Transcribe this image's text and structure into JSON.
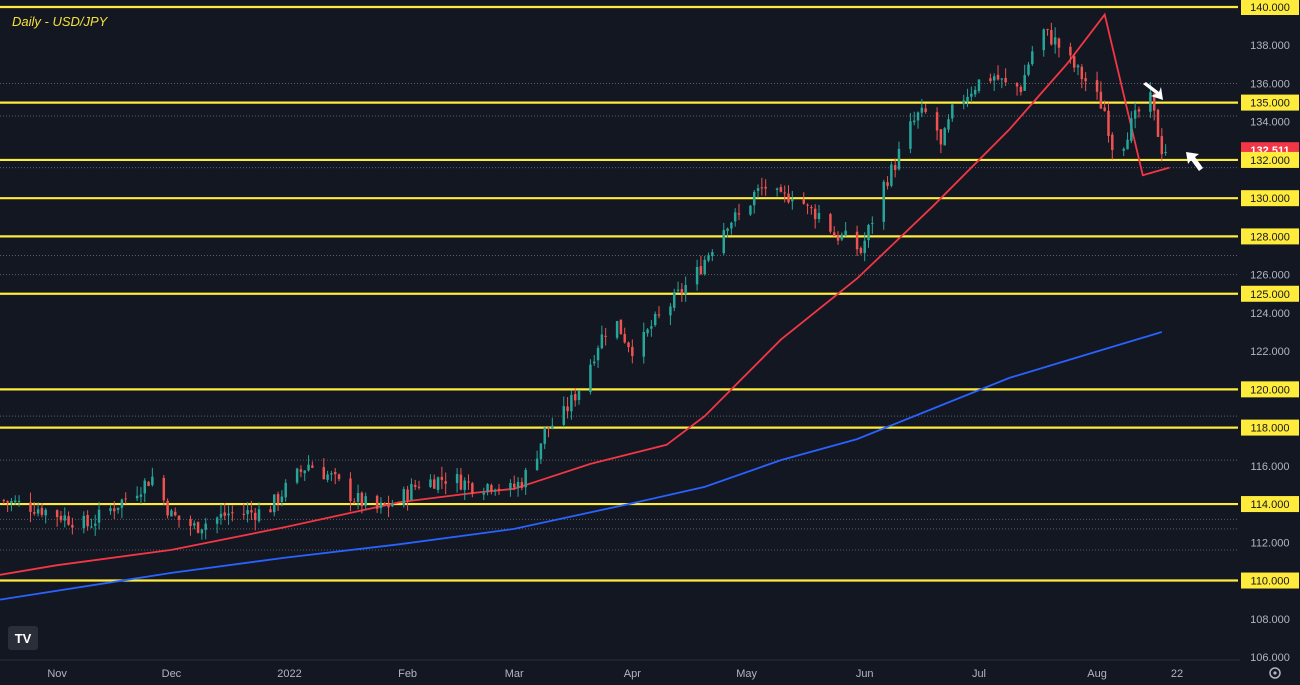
{
  "chart_data": {
    "type": "candlestick",
    "title": "Daily - USD/JPY",
    "ylim": [
      106,
      140
    ],
    "y_ticks": [
      "140.000",
      "138.000",
      "136.000",
      "135.000",
      "134.000",
      "132.511",
      "132.000",
      "130.000",
      "128.000",
      "126.000",
      "125.000",
      "124.000",
      "122.000",
      "120.000",
      "118.000",
      "116.000",
      "114.000",
      "112.000",
      "110.000",
      "108.000",
      "106.000"
    ],
    "x_ticks": [
      {
        "label": "Nov",
        "day": 0
      },
      {
        "label": "Dec",
        "day": 30
      },
      {
        "label": "2022",
        "day": 61
      },
      {
        "label": "Feb",
        "day": 92
      },
      {
        "label": "Mar",
        "day": 120
      },
      {
        "label": "Apr",
        "day": 151
      },
      {
        "label": "May",
        "day": 181
      },
      {
        "label": "Jun",
        "day": 212
      },
      {
        "label": "Jul",
        "day": 242
      },
      {
        "label": "Aug",
        "day": 273
      },
      {
        "label": "22",
        "day": 294
      }
    ],
    "x_range": [
      -15,
      310
    ],
    "horizontal_levels": [
      140,
      135,
      132,
      130,
      128,
      125,
      120,
      118,
      114,
      110
    ],
    "dotted_levels": [
      136,
      134.3,
      131.6,
      127,
      126,
      118.6,
      116.3,
      113.2,
      112.7,
      111.6
    ],
    "current_price": "132.511",
    "waypoints": [
      [
        -15,
        114.2
      ],
      [
        -5,
        113.8
      ],
      [
        8,
        112.9
      ],
      [
        18,
        114.3
      ],
      [
        25,
        115.4
      ],
      [
        30,
        113.4
      ],
      [
        36,
        112.8
      ],
      [
        45,
        113.5
      ],
      [
        55,
        113.6
      ],
      [
        62,
        115.3
      ],
      [
        66,
        116.1
      ],
      [
        72,
        115.4
      ],
      [
        78,
        114.3
      ],
      [
        84,
        113.7
      ],
      [
        89,
        114.1
      ],
      [
        95,
        115.1
      ],
      [
        103,
        115.4
      ],
      [
        110,
        114.9
      ],
      [
        115,
        115.1
      ],
      [
        118,
        114.6
      ],
      [
        122,
        115.2
      ],
      [
        125,
        116.2
      ],
      [
        128,
        117.8
      ],
      [
        133,
        118.7
      ],
      [
        138,
        120.4
      ],
      [
        142,
        122.4
      ],
      [
        146,
        123.8
      ],
      [
        149,
        122.7
      ],
      [
        152,
        121.9
      ],
      [
        156,
        123.3
      ],
      [
        160,
        124.2
      ],
      [
        165,
        125.4
      ],
      [
        168,
        126.1
      ],
      [
        172,
        127.5
      ],
      [
        176,
        128.8
      ],
      [
        180,
        129.1
      ],
      [
        183,
        130.2
      ],
      [
        186,
        130.6
      ],
      [
        190,
        129.9
      ],
      [
        194,
        130.4
      ],
      [
        197,
        129.4
      ],
      [
        201,
        129.1
      ],
      [
        204,
        128.1
      ],
      [
        208,
        127.8
      ],
      [
        211,
        127.2
      ],
      [
        214,
        128.9
      ],
      [
        217,
        130.7
      ],
      [
        220,
        131.8
      ],
      [
        223,
        133.4
      ],
      [
        226,
        134.3
      ],
      [
        230,
        134.5
      ],
      [
        232,
        132.6
      ],
      [
        235,
        134.5
      ],
      [
        238,
        135.3
      ],
      [
        242,
        136.1
      ],
      [
        246,
        136.4
      ],
      [
        249,
        135.9
      ],
      [
        253,
        135.8
      ],
      [
        256,
        137.7
      ],
      [
        259,
        138.7
      ],
      [
        262,
        138.2
      ],
      [
        265,
        137.4
      ],
      [
        268,
        136.6
      ],
      [
        271,
        135.9
      ],
      [
        275,
        134.6
      ],
      [
        278,
        131.9
      ],
      [
        281,
        133.5
      ],
      [
        284,
        134.5
      ],
      [
        287,
        135.1
      ],
      [
        290,
        132.6
      ],
      [
        292,
        132.5
      ]
    ],
    "moving_averages": [
      {
        "color": "#f23645",
        "points": [
          [
            -15,
            110.3
          ],
          [
            0,
            110.8
          ],
          [
            30,
            111.6
          ],
          [
            60,
            112.8
          ],
          [
            90,
            114.1
          ],
          [
            110,
            114.6
          ],
          [
            120,
            114.8
          ],
          [
            140,
            116.1
          ],
          [
            160,
            117.1
          ],
          [
            170,
            118.6
          ],
          [
            190,
            122.6
          ],
          [
            210,
            125.8
          ],
          [
            230,
            129.6
          ],
          [
            250,
            133.6
          ],
          [
            265,
            137.0
          ],
          [
            275,
            139.6
          ],
          [
            285,
            131.2
          ],
          [
            292,
            131.6
          ]
        ]
      },
      {
        "color": "#2962ff",
        "points": [
          [
            -15,
            109.0
          ],
          [
            30,
            110.4
          ],
          [
            60,
            111.2
          ],
          [
            90,
            111.9
          ],
          [
            120,
            112.7
          ],
          [
            150,
            114.0
          ],
          [
            170,
            114.9
          ],
          [
            190,
            116.3
          ],
          [
            210,
            117.4
          ],
          [
            230,
            119.0
          ],
          [
            250,
            120.6
          ],
          [
            270,
            121.8
          ],
          [
            290,
            123.0
          ]
        ]
      }
    ]
  },
  "logo": "TV"
}
